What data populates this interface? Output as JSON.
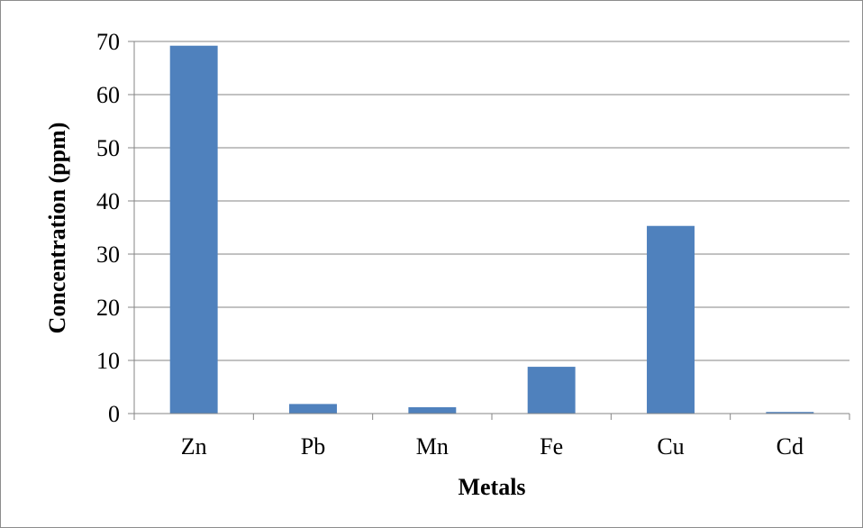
{
  "chart_data": {
    "type": "bar",
    "title": "",
    "xlabel": "Metals",
    "ylabel": "Concentration (ppm)",
    "categories": [
      "Zn",
      "Pb",
      "Mn",
      "Fe",
      "Cu",
      "Cd"
    ],
    "values": [
      69.2,
      1.8,
      1.2,
      8.8,
      35.3,
      0.3
    ],
    "ylim": [
      0,
      70
    ],
    "yticks": [
      0,
      10,
      20,
      30,
      40,
      50,
      60,
      70
    ],
    "grid": true,
    "legend": "none",
    "colors": {
      "bar": "#4f81bd",
      "grid": "#868686",
      "axis": "#868686",
      "frame": "#8c8c8c"
    }
  }
}
